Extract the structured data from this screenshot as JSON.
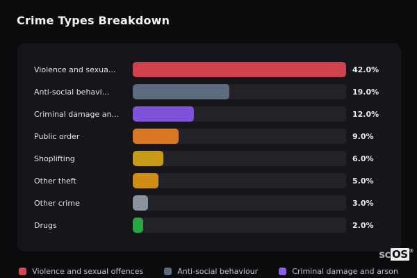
{
  "title": "Crime Types Breakdown",
  "chart_data": {
    "type": "bar",
    "orientation": "horizontal",
    "title": "Crime Types Breakdown",
    "categories": [
      "Violence and sexual offences",
      "Anti-social behaviour",
      "Criminal damage and arson",
      "Public order",
      "Shoplifting",
      "Other theft",
      "Other crime",
      "Drugs"
    ],
    "display_labels": [
      "Violence and sexua...",
      "Anti-social behavi...",
      "Criminal damage an...",
      "Public order",
      "Shoplifting",
      "Other theft",
      "Other crime",
      "Drugs"
    ],
    "values": [
      42.0,
      19.0,
      12.0,
      9.0,
      6.0,
      5.0,
      3.0,
      2.0
    ],
    "value_labels": [
      "42.0%",
      "19.0%",
      "12.0%",
      "9.0%",
      "6.0%",
      "5.0%",
      "3.0%",
      "2.0%"
    ],
    "unit": "%",
    "max_value": 42.0,
    "colors": [
      "#cf424b",
      "#5d6b80",
      "#7e52d9",
      "#d97722",
      "#c89b16",
      "#cf8d13",
      "#8b93a1",
      "#27a744"
    ],
    "track_color": "#222228",
    "legend_position": "bottom",
    "legend": [
      {
        "label": "Violence and sexual offences",
        "color": "#e0434d"
      },
      {
        "label": "Anti-social behaviour",
        "color": "#5d6b80"
      },
      {
        "label": "Criminal damage and arson",
        "color": "#8a5cf0"
      }
    ]
  },
  "watermark": {
    "prefix": "sc",
    "suffix": "OS",
    "registered": "®"
  }
}
